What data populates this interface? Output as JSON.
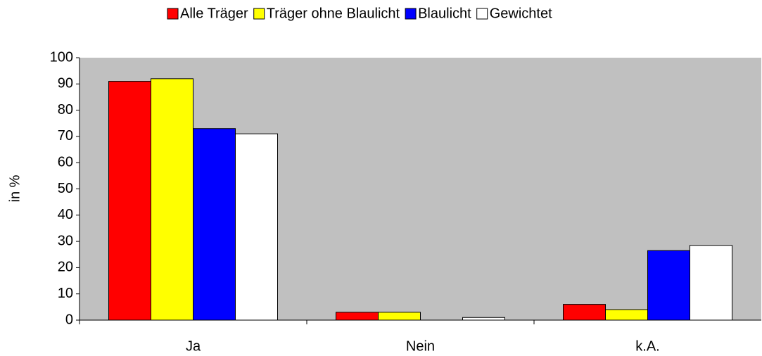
{
  "chart_data": {
    "type": "bar",
    "ylabel": "in %",
    "categories": [
      "Ja",
      "Nein",
      "k.A."
    ],
    "series": [
      {
        "name": "Alle Träger",
        "color": "#ff0000",
        "values": [
          91,
          3,
          6
        ]
      },
      {
        "name": "Träger ohne Blaulicht",
        "color": "#ffff00",
        "values": [
          92,
          3,
          4
        ]
      },
      {
        "name": "Blaulicht",
        "color": "#0000ff",
        "values": [
          73,
          0,
          26.5
        ]
      },
      {
        "name": "Gewichtet",
        "color": "#ffffff",
        "values": [
          71,
          1,
          28.5
        ]
      }
    ],
    "ylim": [
      0,
      100
    ],
    "yticks": [
      0,
      10,
      20,
      30,
      40,
      50,
      60,
      70,
      80,
      90,
      100
    ],
    "plot_background": "#c0c0c0",
    "legend": "top",
    "grid": false
  }
}
